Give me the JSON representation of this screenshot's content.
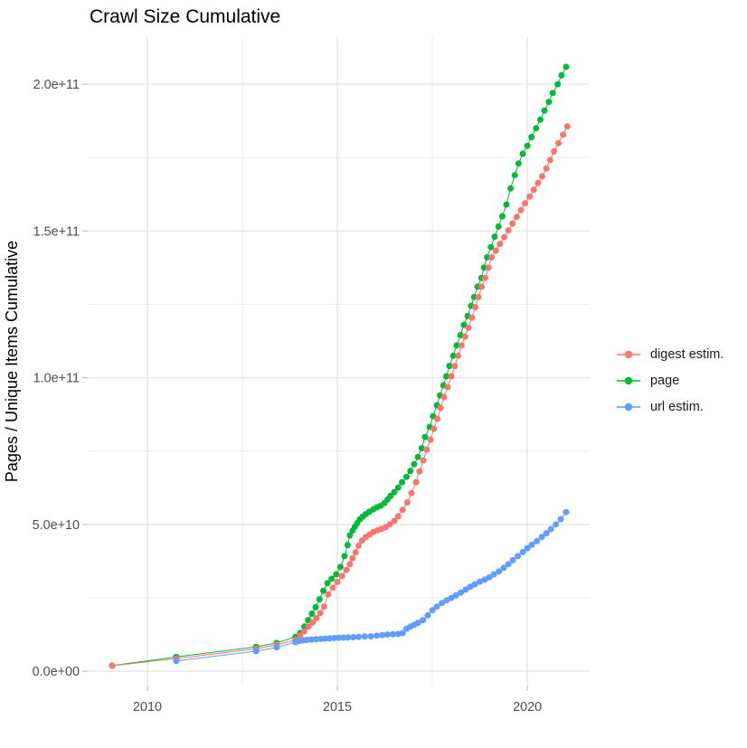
{
  "title": "Crawl Size Cumulative",
  "y_axis_title": "Pages / Unique Items Cumulative",
  "legend": {
    "items": [
      {
        "label": "digest estim.",
        "color": "#F8766D"
      },
      {
        "label": "page",
        "color": "#00BA38"
      },
      {
        "label": "url estim.",
        "color": "#619CFF"
      }
    ]
  },
  "chart_data": {
    "type": "scatter",
    "title": "Crawl Size Cumulative",
    "xlabel": "",
    "ylabel": "Pages / Unique Items Cumulative",
    "xlim": [
      2008.43,
      2021.64
    ],
    "ylim": [
      -4900000000.0,
      216050000000.0
    ],
    "grid": "on",
    "legend_position": "right",
    "x_axis": {
      "ticks": [
        {
          "value": 2010,
          "label": "2010"
        },
        {
          "value": 2015,
          "label": "2015"
        },
        {
          "value": 2020,
          "label": "2020"
        }
      ],
      "minor_breaks": [
        2012.5,
        2017.5
      ]
    },
    "y_axis": {
      "ticks": [
        {
          "value": 0,
          "label": "0.0e+00"
        },
        {
          "value": 50000000000.0,
          "label": "5.0e+10"
        },
        {
          "value": 100000000000.0,
          "label": "1.0e+11"
        },
        {
          "value": 150000000000.0,
          "label": "1.5e+11"
        },
        {
          "value": 200000000000.0,
          "label": "2.0e+11"
        }
      ],
      "minor_breaks": [
        25000000000.0,
        75000000000.0,
        125000000000.0,
        175000000000.0
      ]
    },
    "series": [
      {
        "name": "page",
        "color": "#00BA38",
        "points": [
          [
            2009.07,
            1900000000.0
          ],
          [
            2010.76,
            4900000000.0
          ],
          [
            2012.86,
            8300000000.0
          ],
          [
            2013.4,
            9600000000.0
          ],
          [
            2013.9,
            11700000000.0
          ],
          [
            2014.02,
            13000000000.0
          ],
          [
            2014.13,
            15200000000.0
          ],
          [
            2014.23,
            17400000000.0
          ],
          [
            2014.33,
            19600000000.0
          ],
          [
            2014.43,
            21800000000.0
          ],
          [
            2014.53,
            24500000000.0
          ],
          [
            2014.63,
            27400000000.0
          ],
          [
            2014.74,
            30000000000.0
          ],
          [
            2014.85,
            31500000000.0
          ],
          [
            2014.97,
            33000000000.0
          ],
          [
            2015.08,
            35500000000.0
          ],
          [
            2015.19,
            39200000000.0
          ],
          [
            2015.27,
            43000000000.0
          ],
          [
            2015.33,
            46300000000.0
          ],
          [
            2015.4,
            47900000000.0
          ],
          [
            2015.46,
            49200000000.0
          ],
          [
            2015.52,
            50400000000.0
          ],
          [
            2015.59,
            51700000000.0
          ],
          [
            2015.67,
            52700000000.0
          ],
          [
            2015.75,
            53500000000.0
          ],
          [
            2015.84,
            54300000000.0
          ],
          [
            2015.94,
            55100000000.0
          ],
          [
            2016.04,
            55800000000.0
          ],
          [
            2016.14,
            56400000000.0
          ],
          [
            2016.24,
            57300000000.0
          ],
          [
            2016.32,
            58500000000.0
          ],
          [
            2016.4,
            59700000000.0
          ],
          [
            2016.5,
            61000000000.0
          ],
          [
            2016.6,
            62600000000.0
          ],
          [
            2016.7,
            64400000000.0
          ],
          [
            2016.82,
            66200000000.0
          ],
          [
            2016.92,
            68200000000.0
          ],
          [
            2017.02,
            70500000000.0
          ],
          [
            2017.12,
            73000000000.0
          ],
          [
            2017.22,
            76000000000.0
          ],
          [
            2017.31,
            79800000000.0
          ],
          [
            2017.43,
            83200000000.0
          ],
          [
            2017.52,
            86900000000.0
          ],
          [
            2017.62,
            90600000000.0
          ],
          [
            2017.7,
            94000000000.0
          ],
          [
            2017.79,
            97400000000.0
          ],
          [
            2017.87,
            100500000000.0
          ],
          [
            2017.95,
            104000000000.0
          ],
          [
            2018.05,
            107500000000.0
          ],
          [
            2018.14,
            111000000000.0
          ],
          [
            2018.24,
            114500000000.0
          ],
          [
            2018.33,
            118000000000.0
          ],
          [
            2018.43,
            121000000000.0
          ],
          [
            2018.52,
            124500000000.0
          ],
          [
            2018.6,
            127500000000.0
          ],
          [
            2018.69,
            131000000000.0
          ],
          [
            2018.79,
            134000000000.0
          ],
          [
            2018.86,
            137500000000.0
          ],
          [
            2018.94,
            141000000000.0
          ],
          [
            2019.04,
            144500000000.0
          ],
          [
            2019.14,
            148000000000.0
          ],
          [
            2019.24,
            151500000000.0
          ],
          [
            2019.34,
            155000000000.0
          ],
          [
            2019.45,
            159000000000.0
          ],
          [
            2019.56,
            164500000000.0
          ],
          [
            2019.67,
            169000000000.0
          ],
          [
            2019.77,
            173000000000.0
          ],
          [
            2019.88,
            176300000000.0
          ],
          [
            2020.0,
            179000000000.0
          ],
          [
            2020.11,
            182000000000.0
          ],
          [
            2020.23,
            185000000000.0
          ],
          [
            2020.34,
            187900000000.0
          ],
          [
            2020.45,
            191000000000.0
          ],
          [
            2020.57,
            194000000000.0
          ],
          [
            2020.67,
            197000000000.0
          ],
          [
            2020.8,
            200000000000.0
          ],
          [
            2020.9,
            203000000000.0
          ],
          [
            2021.02,
            205900000000.0
          ]
        ]
      },
      {
        "name": "digest estim.",
        "color": "#F8766D",
        "points": [
          [
            2009.07,
            1850000000.0
          ],
          [
            2010.76,
            4300000000.0
          ],
          [
            2012.86,
            7600000000.0
          ],
          [
            2013.4,
            9000000000.0
          ],
          [
            2013.9,
            10700000000.0
          ],
          [
            2014.02,
            12100000000.0
          ],
          [
            2014.13,
            13600000000.0
          ],
          [
            2014.24,
            15200000000.0
          ],
          [
            2014.35,
            16600000000.0
          ],
          [
            2014.45,
            18100000000.0
          ],
          [
            2014.55,
            19800000000.0
          ],
          [
            2014.65,
            22000000000.0
          ],
          [
            2014.76,
            26200000000.0
          ],
          [
            2014.88,
            28400000000.0
          ],
          [
            2015.0,
            30400000000.0
          ],
          [
            2015.12,
            32400000000.0
          ],
          [
            2015.24,
            34500000000.0
          ],
          [
            2015.33,
            36500000000.0
          ],
          [
            2015.4,
            38500000000.0
          ],
          [
            2015.48,
            40500000000.0
          ],
          [
            2015.56,
            42800000000.0
          ],
          [
            2015.65,
            44500000000.0
          ],
          [
            2015.75,
            45700000000.0
          ],
          [
            2015.85,
            46600000000.0
          ],
          [
            2015.95,
            47400000000.0
          ],
          [
            2016.06,
            48000000000.0
          ],
          [
            2016.16,
            48500000000.0
          ],
          [
            2016.27,
            49100000000.0
          ],
          [
            2016.38,
            50000000000.0
          ],
          [
            2016.5,
            51200000000.0
          ],
          [
            2016.6,
            52800000000.0
          ],
          [
            2016.72,
            55000000000.0
          ],
          [
            2016.84,
            57500000000.0
          ],
          [
            2016.95,
            60700000000.0
          ],
          [
            2017.07,
            64400000000.0
          ],
          [
            2017.16,
            68100000000.0
          ],
          [
            2017.26,
            71800000000.0
          ],
          [
            2017.35,
            75500000000.0
          ],
          [
            2017.45,
            78900000000.0
          ],
          [
            2017.54,
            82600000000.0
          ],
          [
            2017.63,
            86000000000.0
          ],
          [
            2017.72,
            89700000000.0
          ],
          [
            2017.81,
            93400000000.0
          ],
          [
            2017.9,
            96800000000.0
          ],
          [
            2018.0,
            100500000000.0
          ],
          [
            2018.09,
            104000000000.0
          ],
          [
            2018.18,
            107500000000.0
          ],
          [
            2018.27,
            111000000000.0
          ],
          [
            2018.36,
            114000000000.0
          ],
          [
            2018.45,
            117000000000.0
          ],
          [
            2018.54,
            120500000000.0
          ],
          [
            2018.63,
            124000000000.0
          ],
          [
            2018.71,
            127500000000.0
          ],
          [
            2018.8,
            131000000000.0
          ],
          [
            2018.89,
            134000000000.0
          ],
          [
            2018.98,
            137500000000.0
          ],
          [
            2019.06,
            141000000000.0
          ],
          [
            2019.17,
            143300000000.0
          ],
          [
            2019.28,
            145600000000.0
          ],
          [
            2019.39,
            147900000000.0
          ],
          [
            2019.5,
            150200000000.0
          ],
          [
            2019.61,
            152500000000.0
          ],
          [
            2019.72,
            154800000000.0
          ],
          [
            2019.83,
            157100000000.0
          ],
          [
            2019.94,
            159400000000.0
          ],
          [
            2020.06,
            161700000000.0
          ],
          [
            2020.17,
            164000000000.0
          ],
          [
            2020.28,
            166300000000.0
          ],
          [
            2020.39,
            168600000000.0
          ],
          [
            2020.5,
            171300000000.0
          ],
          [
            2020.6,
            174200000000.0
          ],
          [
            2020.7,
            177100000000.0
          ],
          [
            2020.82,
            179900000000.0
          ],
          [
            2020.94,
            182800000000.0
          ],
          [
            2021.05,
            185600000000.0
          ]
        ]
      },
      {
        "name": "url estim.",
        "color": "#619CFF",
        "points": [
          [
            2010.76,
            3500000000.0
          ],
          [
            2012.86,
            6800000000.0
          ],
          [
            2013.4,
            8100000000.0
          ],
          [
            2013.9,
            9900000000.0
          ],
          [
            2014.0,
            10300000000.0
          ],
          [
            2014.1,
            10500000000.0
          ],
          [
            2014.2,
            10700000000.0
          ],
          [
            2014.32,
            10800000000.0
          ],
          [
            2014.44,
            10900000000.0
          ],
          [
            2014.56,
            11000000000.0
          ],
          [
            2014.68,
            11100000000.0
          ],
          [
            2014.8,
            11200000000.0
          ],
          [
            2014.92,
            11300000000.0
          ],
          [
            2015.04,
            11400000000.0
          ],
          [
            2015.16,
            11450000000.0
          ],
          [
            2015.28,
            11500000000.0
          ],
          [
            2015.42,
            11600000000.0
          ],
          [
            2015.56,
            11700000000.0
          ],
          [
            2015.72,
            11800000000.0
          ],
          [
            2015.88,
            11900000000.0
          ],
          [
            2016.04,
            12100000000.0
          ],
          [
            2016.18,
            12300000000.0
          ],
          [
            2016.32,
            12500000000.0
          ],
          [
            2016.46,
            12600000000.0
          ],
          [
            2016.6,
            12700000000.0
          ],
          [
            2016.72,
            13000000000.0
          ],
          [
            2016.82,
            14500000000.0
          ],
          [
            2016.92,
            15200000000.0
          ],
          [
            2017.02,
            15800000000.0
          ],
          [
            2017.12,
            16500000000.0
          ],
          [
            2017.25,
            17400000000.0
          ],
          [
            2017.38,
            19000000000.0
          ],
          [
            2017.5,
            20800000000.0
          ],
          [
            2017.62,
            22000000000.0
          ],
          [
            2017.75,
            23200000000.0
          ],
          [
            2017.88,
            24200000000.0
          ],
          [
            2018.0,
            25000000000.0
          ],
          [
            2018.12,
            25800000000.0
          ],
          [
            2018.25,
            26800000000.0
          ],
          [
            2018.38,
            27800000000.0
          ],
          [
            2018.5,
            28800000000.0
          ],
          [
            2018.62,
            29600000000.0
          ],
          [
            2018.75,
            30500000000.0
          ],
          [
            2018.88,
            31200000000.0
          ],
          [
            2019.0,
            32000000000.0
          ],
          [
            2019.12,
            33000000000.0
          ],
          [
            2019.25,
            34000000000.0
          ],
          [
            2019.38,
            35200000000.0
          ],
          [
            2019.5,
            36500000000.0
          ],
          [
            2019.62,
            37800000000.0
          ],
          [
            2019.75,
            39200000000.0
          ],
          [
            2019.88,
            40600000000.0
          ],
          [
            2020.0,
            41900000000.0
          ],
          [
            2020.12,
            43100000000.0
          ],
          [
            2020.25,
            44300000000.0
          ],
          [
            2020.38,
            45700000000.0
          ],
          [
            2020.5,
            47000000000.0
          ],
          [
            2020.62,
            48400000000.0
          ],
          [
            2020.75,
            50000000000.0
          ],
          [
            2020.88,
            51800000000.0
          ],
          [
            2021.02,
            54200000000.0
          ]
        ]
      }
    ]
  }
}
